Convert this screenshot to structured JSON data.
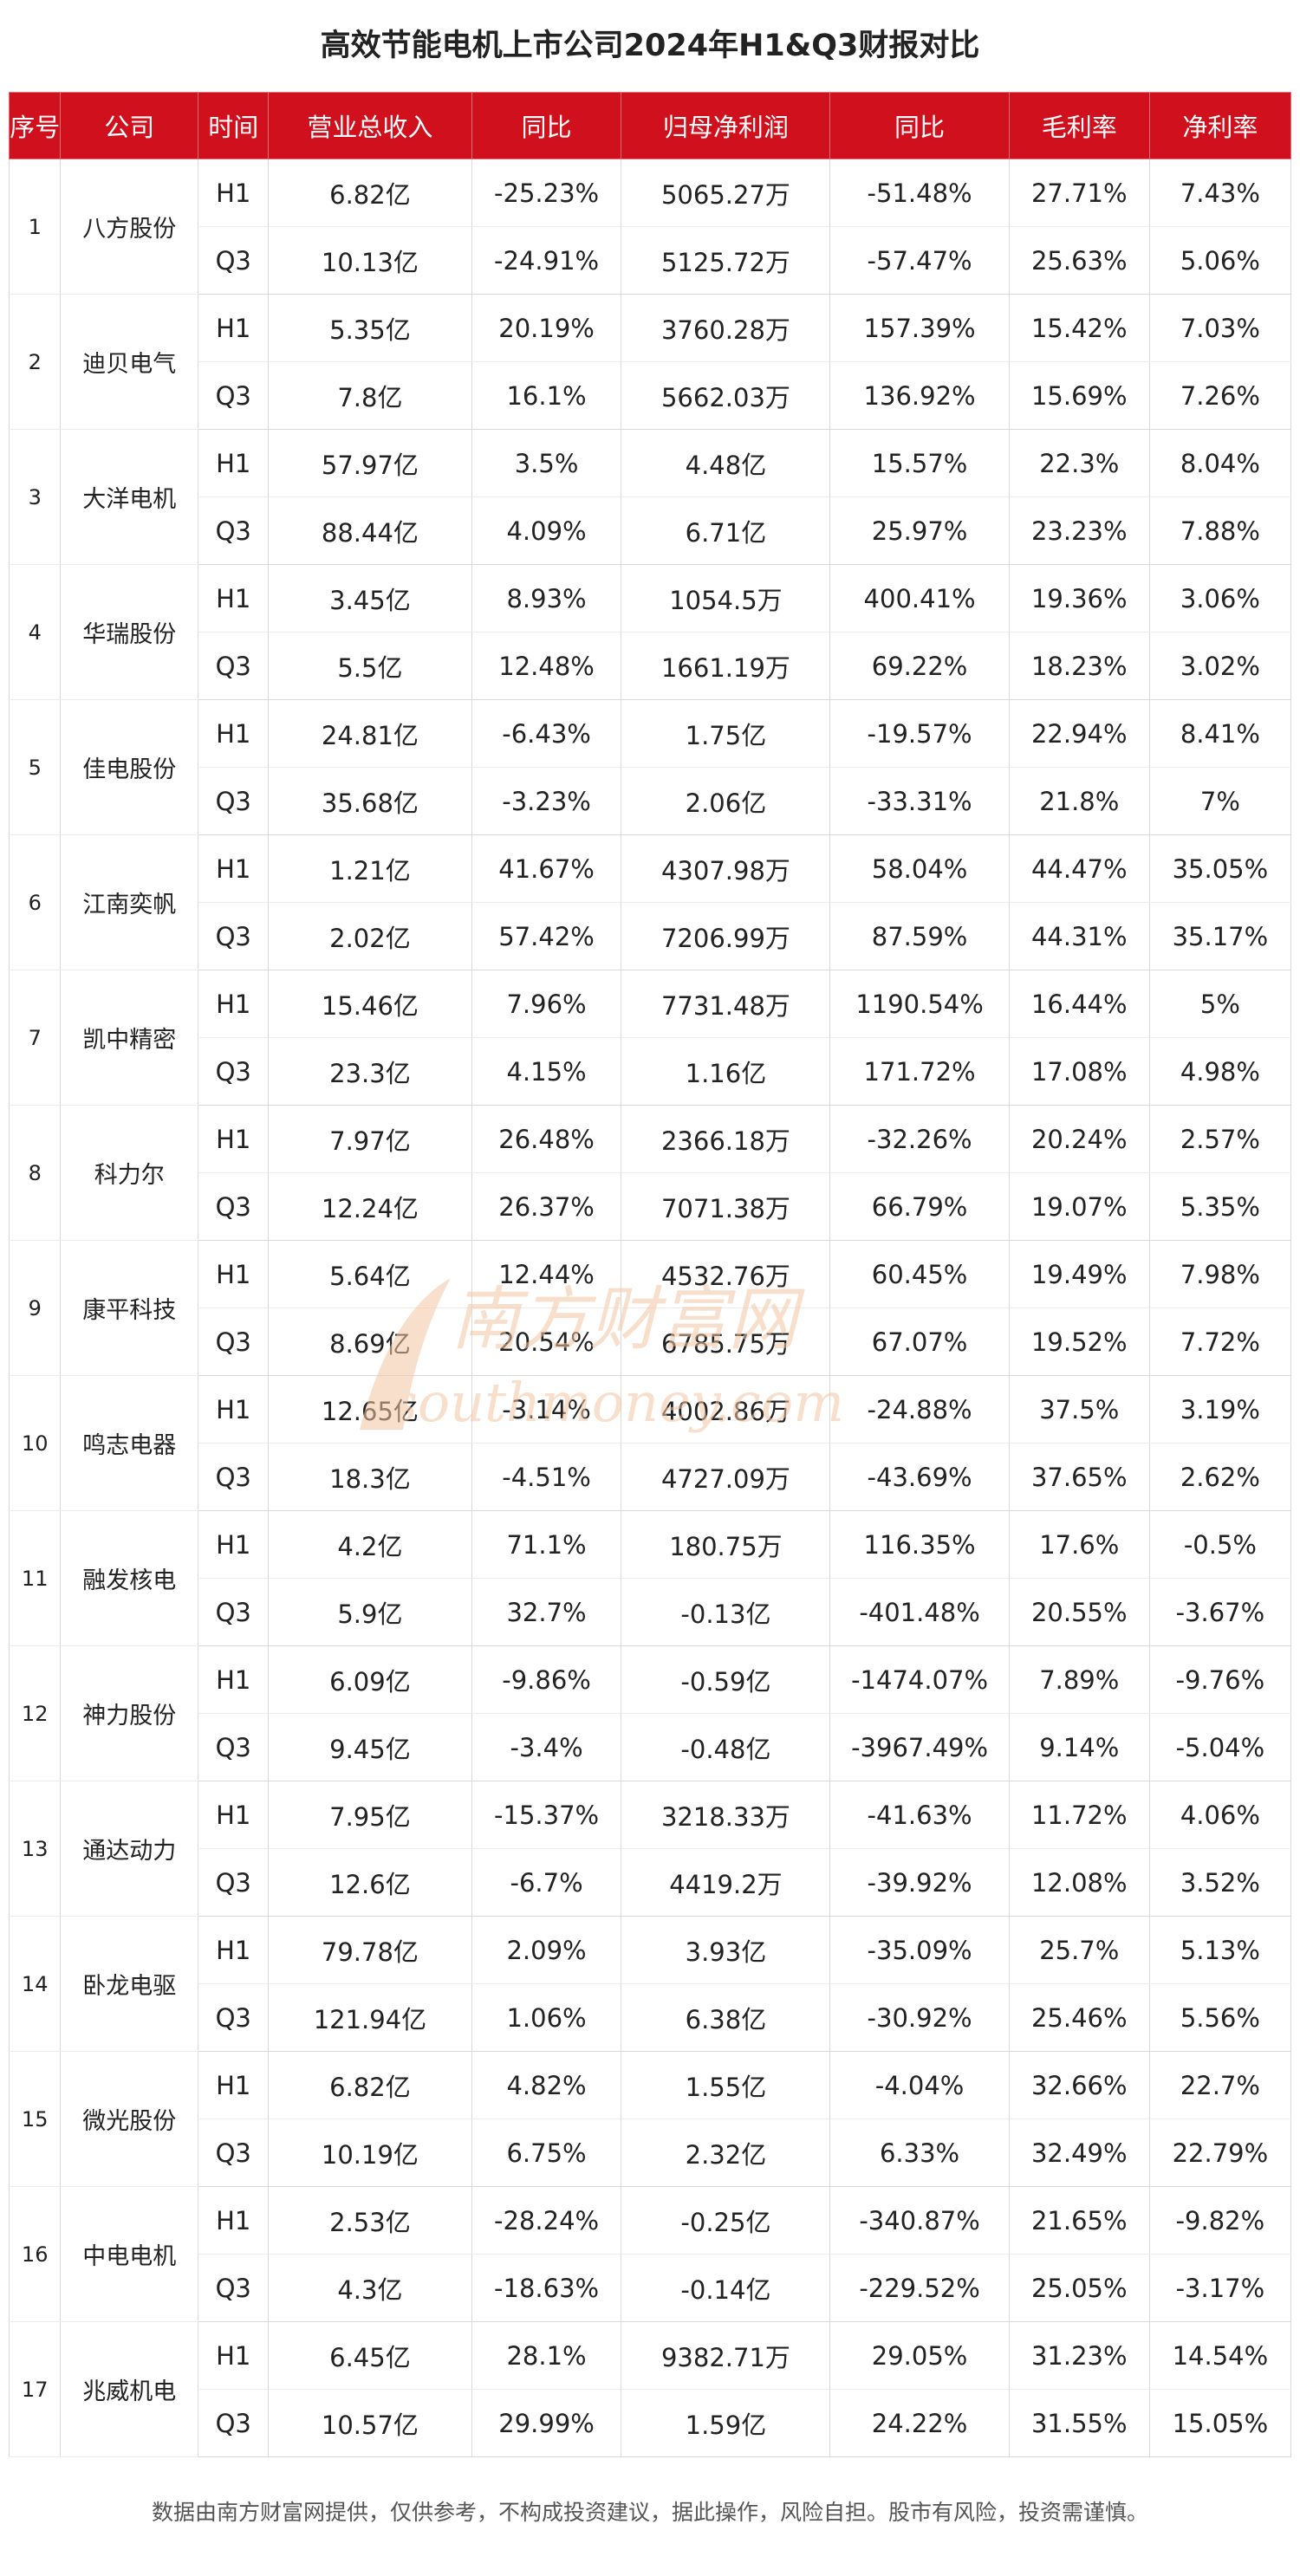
{
  "title": "高效节能电机上市公司2024年H1&Q3财报对比",
  "headers": [
    "序号",
    "公司",
    "时间",
    "营业总收入",
    "同比",
    "归母净利润",
    "同比",
    "毛利率",
    "净利率"
  ],
  "companies": [
    {
      "seq": "1",
      "name": "八方股份",
      "rows": [
        {
          "period": "H1",
          "revenue": "6.82亿",
          "revenue_yoy": "-25.23%",
          "net_profit": "5065.27万",
          "profit_yoy": "-51.48%",
          "gross_margin": "27.71%",
          "net_margin": "7.43%"
        },
        {
          "period": "Q3",
          "revenue": "10.13亿",
          "revenue_yoy": "-24.91%",
          "net_profit": "5125.72万",
          "profit_yoy": "-57.47%",
          "gross_margin": "25.63%",
          "net_margin": "5.06%"
        }
      ]
    },
    {
      "seq": "2",
      "name": "迪贝电气",
      "rows": [
        {
          "period": "H1",
          "revenue": "5.35亿",
          "revenue_yoy": "20.19%",
          "net_profit": "3760.28万",
          "profit_yoy": "157.39%",
          "gross_margin": "15.42%",
          "net_margin": "7.03%"
        },
        {
          "period": "Q3",
          "revenue": "7.8亿",
          "revenue_yoy": "16.1%",
          "net_profit": "5662.03万",
          "profit_yoy": "136.92%",
          "gross_margin": "15.69%",
          "net_margin": "7.26%"
        }
      ]
    },
    {
      "seq": "3",
      "name": "大洋电机",
      "rows": [
        {
          "period": "H1",
          "revenue": "57.97亿",
          "revenue_yoy": "3.5%",
          "net_profit": "4.48亿",
          "profit_yoy": "15.57%",
          "gross_margin": "22.3%",
          "net_margin": "8.04%"
        },
        {
          "period": "Q3",
          "revenue": "88.44亿",
          "revenue_yoy": "4.09%",
          "net_profit": "6.71亿",
          "profit_yoy": "25.97%",
          "gross_margin": "23.23%",
          "net_margin": "7.88%"
        }
      ]
    },
    {
      "seq": "4",
      "name": "华瑞股份",
      "rows": [
        {
          "period": "H1",
          "revenue": "3.45亿",
          "revenue_yoy": "8.93%",
          "net_profit": "1054.5万",
          "profit_yoy": "400.41%",
          "gross_margin": "19.36%",
          "net_margin": "3.06%"
        },
        {
          "period": "Q3",
          "revenue": "5.5亿",
          "revenue_yoy": "12.48%",
          "net_profit": "1661.19万",
          "profit_yoy": "69.22%",
          "gross_margin": "18.23%",
          "net_margin": "3.02%"
        }
      ]
    },
    {
      "seq": "5",
      "name": "佳电股份",
      "rows": [
        {
          "period": "H1",
          "revenue": "24.81亿",
          "revenue_yoy": "-6.43%",
          "net_profit": "1.75亿",
          "profit_yoy": "-19.57%",
          "gross_margin": "22.94%",
          "net_margin": "8.41%"
        },
        {
          "period": "Q3",
          "revenue": "35.68亿",
          "revenue_yoy": "-3.23%",
          "net_profit": "2.06亿",
          "profit_yoy": "-33.31%",
          "gross_margin": "21.8%",
          "net_margin": "7%"
        }
      ]
    },
    {
      "seq": "6",
      "name": "江南奕帆",
      "rows": [
        {
          "period": "H1",
          "revenue": "1.21亿",
          "revenue_yoy": "41.67%",
          "net_profit": "4307.98万",
          "profit_yoy": "58.04%",
          "gross_margin": "44.47%",
          "net_margin": "35.05%"
        },
        {
          "period": "Q3",
          "revenue": "2.02亿",
          "revenue_yoy": "57.42%",
          "net_profit": "7206.99万",
          "profit_yoy": "87.59%",
          "gross_margin": "44.31%",
          "net_margin": "35.17%"
        }
      ]
    },
    {
      "seq": "7",
      "name": "凯中精密",
      "rows": [
        {
          "period": "H1",
          "revenue": "15.46亿",
          "revenue_yoy": "7.96%",
          "net_profit": "7731.48万",
          "profit_yoy": "1190.54%",
          "gross_margin": "16.44%",
          "net_margin": "5%"
        },
        {
          "period": "Q3",
          "revenue": "23.3亿",
          "revenue_yoy": "4.15%",
          "net_profit": "1.16亿",
          "profit_yoy": "171.72%",
          "gross_margin": "17.08%",
          "net_margin": "4.98%"
        }
      ]
    },
    {
      "seq": "8",
      "name": "科力尔",
      "rows": [
        {
          "period": "H1",
          "revenue": "7.97亿",
          "revenue_yoy": "26.48%",
          "net_profit": "2366.18万",
          "profit_yoy": "-32.26%",
          "gross_margin": "20.24%",
          "net_margin": "2.57%"
        },
        {
          "period": "Q3",
          "revenue": "12.24亿",
          "revenue_yoy": "26.37%",
          "net_profit": "7071.38万",
          "profit_yoy": "66.79%",
          "gross_margin": "19.07%",
          "net_margin": "5.35%"
        }
      ]
    },
    {
      "seq": "9",
      "name": "康平科技",
      "rows": [
        {
          "period": "H1",
          "revenue": "5.64亿",
          "revenue_yoy": "12.44%",
          "net_profit": "4532.76万",
          "profit_yoy": "60.45%",
          "gross_margin": "19.49%",
          "net_margin": "7.98%"
        },
        {
          "period": "Q3",
          "revenue": "8.69亿",
          "revenue_yoy": "20.54%",
          "net_profit": "6785.75万",
          "profit_yoy": "67.07%",
          "gross_margin": "19.52%",
          "net_margin": "7.72%"
        }
      ]
    },
    {
      "seq": "10",
      "name": "鸣志电器",
      "rows": [
        {
          "period": "H1",
          "revenue": "12.65亿",
          "revenue_yoy": "-3.14%",
          "net_profit": "4002.86万",
          "profit_yoy": "-24.88%",
          "gross_margin": "37.5%",
          "net_margin": "3.19%"
        },
        {
          "period": "Q3",
          "revenue": "18.3亿",
          "revenue_yoy": "-4.51%",
          "net_profit": "4727.09万",
          "profit_yoy": "-43.69%",
          "gross_margin": "37.65%",
          "net_margin": "2.62%"
        }
      ]
    },
    {
      "seq": "11",
      "name": "融发核电",
      "rows": [
        {
          "period": "H1",
          "revenue": "4.2亿",
          "revenue_yoy": "71.1%",
          "net_profit": "180.75万",
          "profit_yoy": "116.35%",
          "gross_margin": "17.6%",
          "net_margin": "-0.5%"
        },
        {
          "period": "Q3",
          "revenue": "5.9亿",
          "revenue_yoy": "32.7%",
          "net_profit": "-0.13亿",
          "profit_yoy": "-401.48%",
          "gross_margin": "20.55%",
          "net_margin": "-3.67%"
        }
      ]
    },
    {
      "seq": "12",
      "name": "神力股份",
      "rows": [
        {
          "period": "H1",
          "revenue": "6.09亿",
          "revenue_yoy": "-9.86%",
          "net_profit": "-0.59亿",
          "profit_yoy": "-1474.07%",
          "gross_margin": "7.89%",
          "net_margin": "-9.76%"
        },
        {
          "period": "Q3",
          "revenue": "9.45亿",
          "revenue_yoy": "-3.4%",
          "net_profit": "-0.48亿",
          "profit_yoy": "-3967.49%",
          "gross_margin": "9.14%",
          "net_margin": "-5.04%"
        }
      ]
    },
    {
      "seq": "13",
      "name": "通达动力",
      "rows": [
        {
          "period": "H1",
          "revenue": "7.95亿",
          "revenue_yoy": "-15.37%",
          "net_profit": "3218.33万",
          "profit_yoy": "-41.63%",
          "gross_margin": "11.72%",
          "net_margin": "4.06%"
        },
        {
          "period": "Q3",
          "revenue": "12.6亿",
          "revenue_yoy": "-6.7%",
          "net_profit": "4419.2万",
          "profit_yoy": "-39.92%",
          "gross_margin": "12.08%",
          "net_margin": "3.52%"
        }
      ]
    },
    {
      "seq": "14",
      "name": "卧龙电驱",
      "rows": [
        {
          "period": "H1",
          "revenue": "79.78亿",
          "revenue_yoy": "2.09%",
          "net_profit": "3.93亿",
          "profit_yoy": "-35.09%",
          "gross_margin": "25.7%",
          "net_margin": "5.13%"
        },
        {
          "period": "Q3",
          "revenue": "121.94亿",
          "revenue_yoy": "1.06%",
          "net_profit": "6.38亿",
          "profit_yoy": "-30.92%",
          "gross_margin": "25.46%",
          "net_margin": "5.56%"
        }
      ]
    },
    {
      "seq": "15",
      "name": "微光股份",
      "rows": [
        {
          "period": "H1",
          "revenue": "6.82亿",
          "revenue_yoy": "4.82%",
          "net_profit": "1.55亿",
          "profit_yoy": "-4.04%",
          "gross_margin": "32.66%",
          "net_margin": "22.7%"
        },
        {
          "period": "Q3",
          "revenue": "10.19亿",
          "revenue_yoy": "6.75%",
          "net_profit": "2.32亿",
          "profit_yoy": "6.33%",
          "gross_margin": "32.49%",
          "net_margin": "22.79%"
        }
      ]
    },
    {
      "seq": "16",
      "name": "中电电机",
      "rows": [
        {
          "period": "H1",
          "revenue": "2.53亿",
          "revenue_yoy": "-28.24%",
          "net_profit": "-0.25亿",
          "profit_yoy": "-340.87%",
          "gross_margin": "21.65%",
          "net_margin": "-9.82%"
        },
        {
          "period": "Q3",
          "revenue": "4.3亿",
          "revenue_yoy": "-18.63%",
          "net_profit": "-0.14亿",
          "profit_yoy": "-229.52%",
          "gross_margin": "25.05%",
          "net_margin": "-3.17%"
        }
      ]
    },
    {
      "seq": "17",
      "name": "兆威机电",
      "rows": [
        {
          "period": "H1",
          "revenue": "6.45亿",
          "revenue_yoy": "28.1%",
          "net_profit": "9382.71万",
          "profit_yoy": "29.05%",
          "gross_margin": "31.23%",
          "net_margin": "14.54%"
        },
        {
          "period": "Q3",
          "revenue": "10.57亿",
          "revenue_yoy": "29.99%",
          "net_profit": "1.59亿",
          "profit_yoy": "24.22%",
          "gross_margin": "31.55%",
          "net_margin": "15.05%"
        }
      ]
    }
  ],
  "watermark": {
    "cn": "南方财富网",
    "en": "southmoney.com",
    "color": "#f2c6a4"
  },
  "footer": "数据由南方财富网提供，仅供参考，不构成投资建议，据此操作，风险自担。股市有风险，投资需谨慎。",
  "colors": {
    "header_bg": "#d0101c",
    "header_text": "#ffffff",
    "grid_line": "#d9d9d9"
  }
}
